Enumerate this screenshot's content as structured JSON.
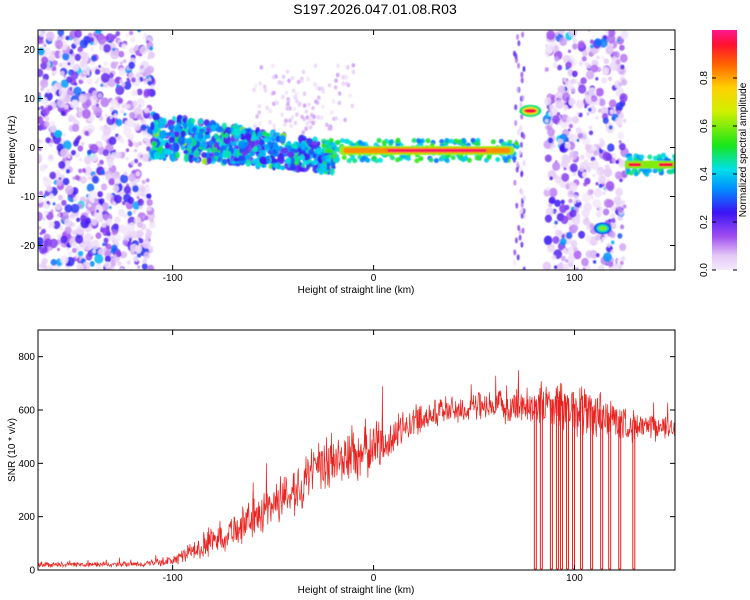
{
  "title": "S197.2026.047.01.08.R03",
  "chart_data": [
    {
      "type": "heatmap",
      "xlabel": "Height of straight line (km)",
      "ylabel": "Frequency (Hz)",
      "xlim": [
        -167,
        150
      ],
      "ylim": [
        -25,
        24
      ],
      "xticks": [
        -100,
        0,
        100
      ],
      "yticks": [
        -20,
        -10,
        0,
        10,
        20
      ],
      "xtick_labels": [
        "-100",
        "0",
        "100"
      ],
      "ytick_labels": [
        "-20",
        "-10",
        "0",
        "10",
        "20"
      ],
      "colorbar": {
        "label": "Normalized spectral amplitude",
        "range": [
          0,
          1
        ],
        "ticks": [
          0,
          0.2,
          0.4,
          0.6,
          0.8
        ],
        "tick_labels": [
          "0.0",
          "0.2",
          "0.4",
          "0.6",
          "0.8"
        ]
      },
      "features": [
        {
          "name": "noise-left",
          "x": [
            -167,
            -110
          ],
          "y": [
            -25,
            24
          ],
          "amplitude": 0.2
        },
        {
          "name": "band-wide",
          "x": [
            -110,
            -20
          ],
          "y": [
            -6,
            6
          ],
          "amplitude": 0.45
        },
        {
          "name": "band-center",
          "x": [
            -25,
            72
          ],
          "y_center": -0.6,
          "y_halfwidth": 1.3,
          "amplitude": 0.95
        },
        {
          "name": "blob-1",
          "x": [
            74,
            82
          ],
          "y_center": 7.5,
          "amplitude": 0.95
        },
        {
          "name": "blob-2",
          "x": [
            111,
            117
          ],
          "y_center": -16.5,
          "amplitude": 0.6
        },
        {
          "name": "band-right",
          "x": [
            125,
            150
          ],
          "y_center": -3.5,
          "y_halfwidth": 1.2,
          "amplitude": 0.9
        },
        {
          "name": "noise-right",
          "x": [
            86,
            125
          ],
          "y": [
            -25,
            24
          ],
          "amplitude": 0.2
        }
      ]
    },
    {
      "type": "line",
      "xlabel": "Height of straight line (km)",
      "ylabel": "SNR (10 * v/v)",
      "xlim": [
        -167,
        150
      ],
      "ylim": [
        0,
        900
      ],
      "xticks": [
        -100,
        0,
        100
      ],
      "yticks": [
        0,
        200,
        400,
        600,
        800
      ],
      "xtick_labels": [
        "-100",
        "0",
        "100"
      ],
      "ytick_labels": [
        "0",
        "200",
        "400",
        "600",
        "800"
      ],
      "series": [
        {
          "name": "SNR",
          "color": "#e8231f",
          "x": [
            -167,
            -150,
            -130,
            -115,
            -100,
            -90,
            -80,
            -70,
            -60,
            -50,
            -40,
            -30,
            -20,
            -10,
            0,
            10,
            20,
            30,
            40,
            50,
            60,
            70,
            80,
            90,
            100,
            110,
            120,
            130,
            140,
            150
          ],
          "values": [
            20,
            20,
            20,
            22,
            35,
            70,
            110,
            150,
            190,
            250,
            300,
            360,
            410,
            430,
            460,
            500,
            560,
            590,
            600,
            610,
            610,
            615,
            620,
            620,
            600,
            590,
            560,
            540,
            530,
            540
          ],
          "spread": [
            10,
            10,
            10,
            12,
            20,
            40,
            60,
            70,
            80,
            90,
            100,
            110,
            120,
            120,
            110,
            80,
            60,
            60,
            60,
            60,
            60,
            70,
            80,
            90,
            110,
            110,
            80,
            60,
            50,
            50
          ]
        }
      ],
      "dropouts_x": [
        80,
        83,
        88,
        91,
        93,
        96,
        99,
        103,
        108,
        113,
        117,
        122,
        129
      ]
    }
  ]
}
